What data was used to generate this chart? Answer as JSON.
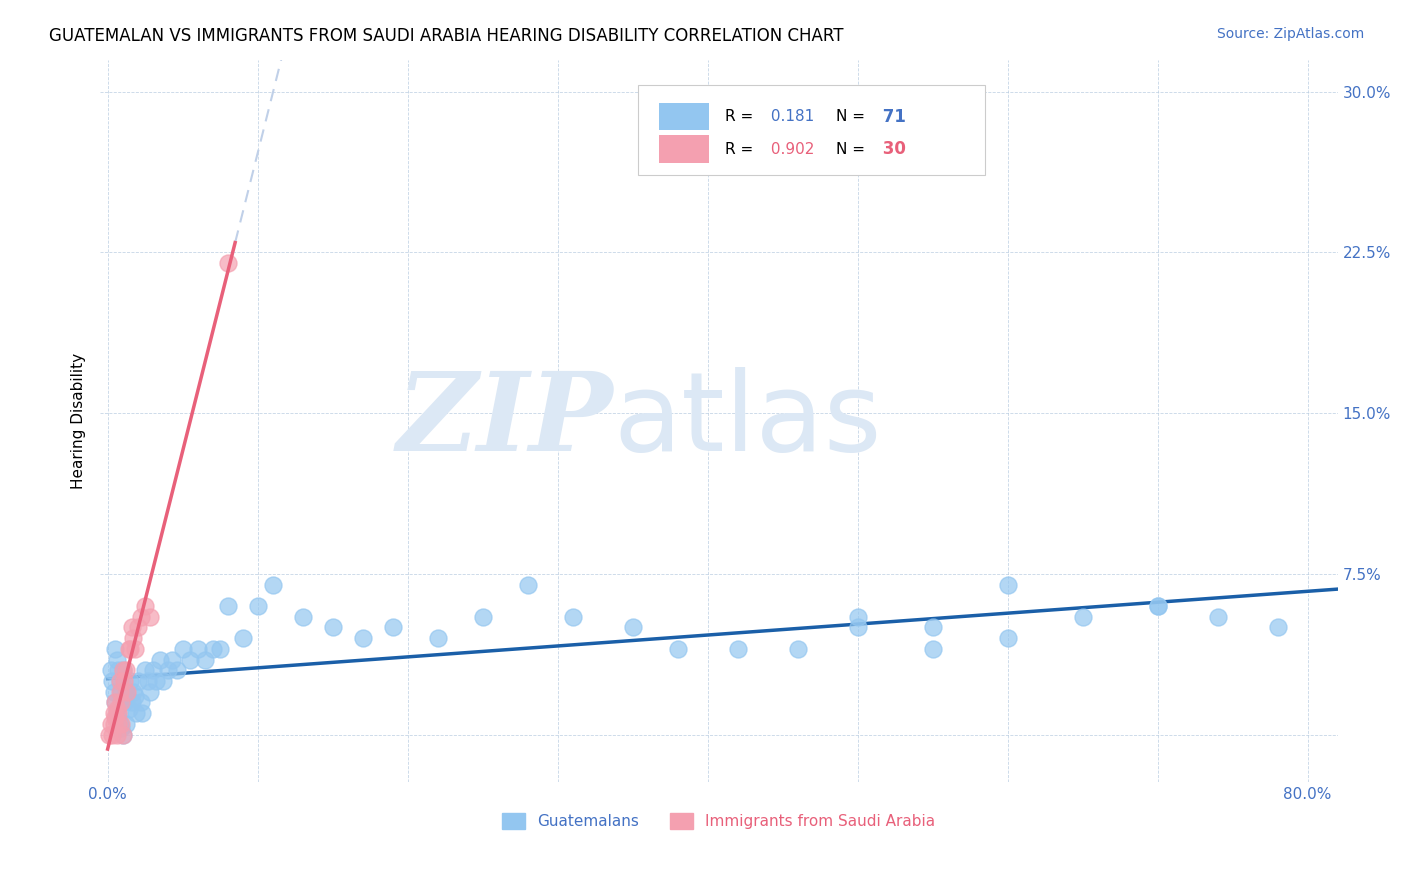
{
  "title": "GUATEMALAN VS IMMIGRANTS FROM SAUDI ARABIA HEARING DISABILITY CORRELATION CHART",
  "source": "Source: ZipAtlas.com",
  "ylabel_label": "Hearing Disability",
  "ytick_labels": [
    "",
    "7.5%",
    "15.0%",
    "22.5%",
    "30.0%"
  ],
  "ytick_values": [
    0.0,
    0.075,
    0.15,
    0.225,
    0.3
  ],
  "xtick_values": [
    0.0,
    0.1,
    0.2,
    0.3,
    0.4,
    0.5,
    0.6,
    0.7,
    0.8
  ],
  "xlim": [
    -0.005,
    0.82
  ],
  "ylim": [
    -0.022,
    0.315
  ],
  "guatemalan_R": 0.181,
  "guatemalan_N": 71,
  "saudi_R": 0.902,
  "saudi_N": 30,
  "color_guatemalan": "#93c6f0",
  "color_saudi": "#f4a0b0",
  "color_blue_text": "#4472c4",
  "color_pink_text": "#e8607a",
  "color_trendline_blue": "#1a5fa8",
  "color_trendline_pink": "#e8607a",
  "color_trendline_ext": "#c0d0e8",
  "watermark_color": "#dce8f5",
  "legend_label_guatemalan": "Guatemalans",
  "legend_label_saudi": "Immigrants from Saudi Arabia",
  "guatemalan_x": [
    0.002,
    0.003,
    0.004,
    0.005,
    0.005,
    0.006,
    0.006,
    0.007,
    0.007,
    0.008,
    0.008,
    0.009,
    0.009,
    0.01,
    0.01,
    0.011,
    0.012,
    0.012,
    0.013,
    0.014,
    0.015,
    0.016,
    0.017,
    0.018,
    0.019,
    0.02,
    0.022,
    0.023,
    0.025,
    0.027,
    0.028,
    0.03,
    0.032,
    0.035,
    0.037,
    0.04,
    0.043,
    0.046,
    0.05,
    0.055,
    0.06,
    0.065,
    0.07,
    0.075,
    0.08,
    0.09,
    0.1,
    0.11,
    0.13,
    0.15,
    0.17,
    0.19,
    0.22,
    0.25,
    0.28,
    0.31,
    0.35,
    0.38,
    0.42,
    0.46,
    0.5,
    0.55,
    0.6,
    0.65,
    0.7,
    0.74,
    0.78,
    0.5,
    0.6,
    0.7,
    0.55
  ],
  "guatemalan_y": [
    0.03,
    0.025,
    0.02,
    0.04,
    0.015,
    0.035,
    0.01,
    0.03,
    0.008,
    0.025,
    0.005,
    0.02,
    0.003,
    0.03,
    0.0,
    0.015,
    0.02,
    0.005,
    0.018,
    0.012,
    0.025,
    0.015,
    0.02,
    0.018,
    0.01,
    0.025,
    0.015,
    0.01,
    0.03,
    0.025,
    0.02,
    0.03,
    0.025,
    0.035,
    0.025,
    0.03,
    0.035,
    0.03,
    0.04,
    0.035,
    0.04,
    0.035,
    0.04,
    0.04,
    0.06,
    0.045,
    0.06,
    0.07,
    0.055,
    0.05,
    0.045,
    0.05,
    0.045,
    0.055,
    0.07,
    0.055,
    0.05,
    0.04,
    0.04,
    0.04,
    0.05,
    0.05,
    0.045,
    0.055,
    0.06,
    0.055,
    0.05,
    0.055,
    0.07,
    0.06,
    0.04
  ],
  "saudi_x": [
    0.001,
    0.002,
    0.003,
    0.004,
    0.004,
    0.005,
    0.005,
    0.006,
    0.006,
    0.007,
    0.007,
    0.008,
    0.008,
    0.009,
    0.009,
    0.01,
    0.01,
    0.011,
    0.012,
    0.013,
    0.014,
    0.015,
    0.016,
    0.017,
    0.018,
    0.02,
    0.022,
    0.025,
    0.028,
    0.08
  ],
  "saudi_y": [
    0.0,
    0.005,
    0.0,
    0.01,
    0.005,
    0.015,
    0.008,
    0.012,
    0.0,
    0.01,
    0.005,
    0.02,
    0.025,
    0.015,
    0.005,
    0.03,
    0.0,
    0.025,
    0.03,
    0.02,
    0.04,
    0.04,
    0.05,
    0.045,
    0.04,
    0.05,
    0.055,
    0.06,
    0.055,
    0.22
  ],
  "saudi_trendline_x0": 0.0,
  "saudi_trendline_x1": 0.085,
  "saudi_trendline_ext_x0": 0.085,
  "saudi_trendline_ext_x1": 0.38
}
